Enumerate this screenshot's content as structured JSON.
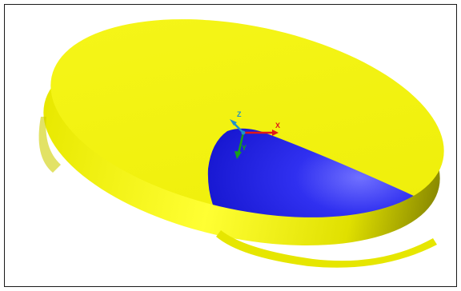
{
  "scene": {
    "background_color": "#ffffff",
    "frame_color": "#1a1a1a",
    "disc_top_color": "#f2f20a",
    "disc_side_color": "#d9d900",
    "cut_face_color": "#1a1ae6",
    "cut_face_highlight": "#6a6aff"
  },
  "triad": {
    "z_label": "Z",
    "x_label": "X",
    "y_label": "Y",
    "z_color": "#1e90c8",
    "x_color": "#e01818",
    "y_color": "#18a018"
  }
}
